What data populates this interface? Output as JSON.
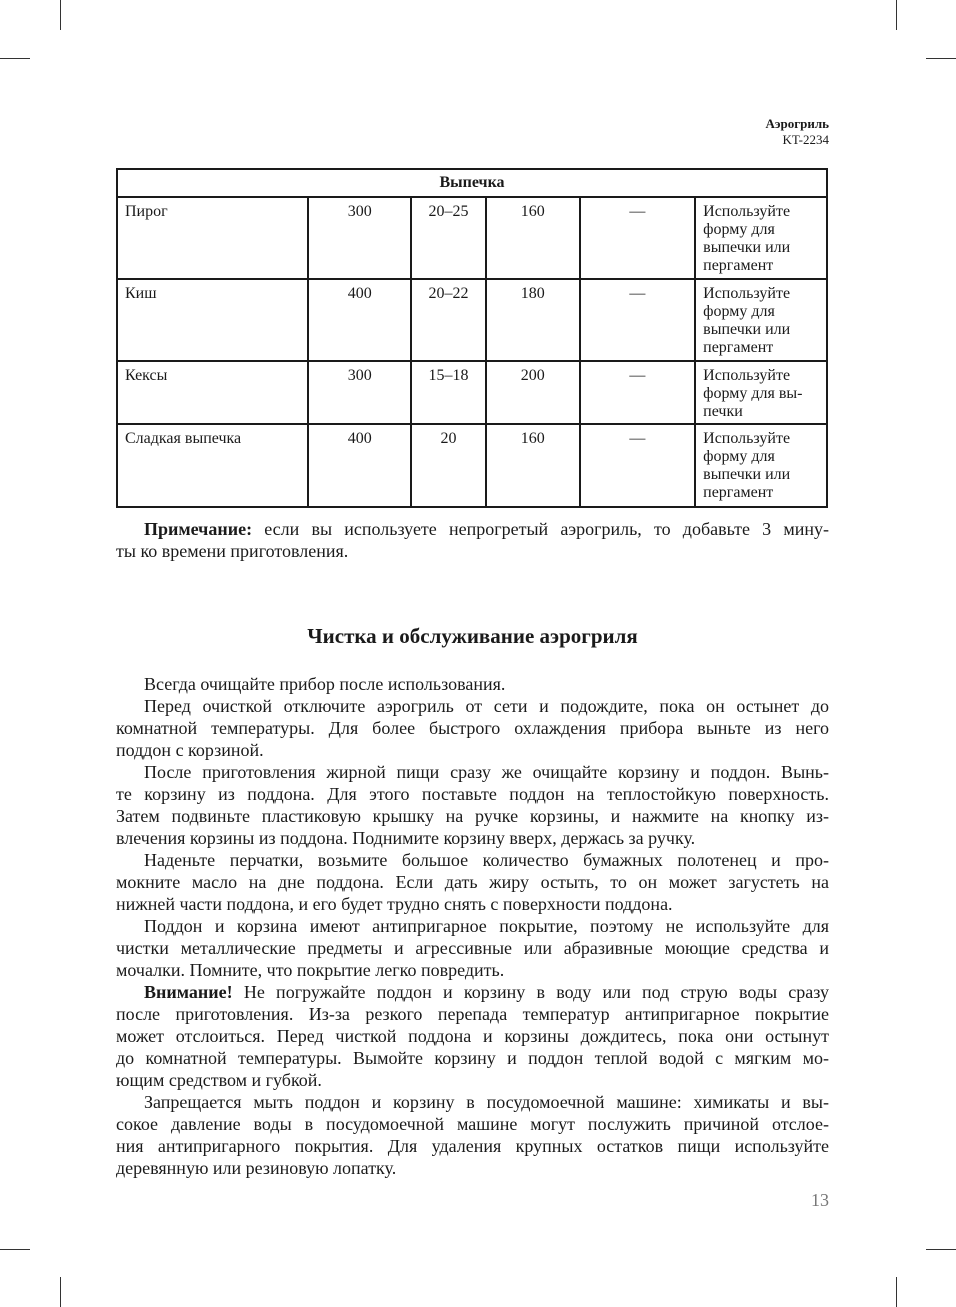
{
  "header": {
    "product": "Аэрогриль",
    "model": "KT-2234"
  },
  "table": {
    "section": "Выпечка",
    "rows": [
      [
        "Пирог",
        "300",
        "20–25",
        "160",
        "—",
        "Используйте\nформу для\nвыпечки или\nпергамент"
      ],
      [
        "Киш",
        "400",
        "20–22",
        "180",
        "—",
        "Используйте\nформу для\nвыпечки или\nпергамент"
      ],
      [
        "Кексы",
        "300",
        "15–18",
        "200",
        "—",
        "Используйте\nформу для вы-\nпечки"
      ],
      [
        "Сладкая выпечка",
        "400",
        "20",
        "160",
        "—",
        "Используйте\nформу для\nвыпечки или\nпергамент"
      ]
    ]
  },
  "note": {
    "lead": "Примечание:",
    "lines": [
      " если вы используете непрогретый аэрогриль, то добавьте 3 мину-",
      "ты ко времени приготовления."
    ]
  },
  "heading": "Чистка и обслуживание аэрогриля",
  "paragraphs": [
    {
      "lines": [
        "Всегда очищайте прибор после использования."
      ]
    },
    {
      "lines": [
        "Перед очисткой отключите аэрогриль от сети и подождите, пока он остынет до",
        "комнатной температуры. Для более быстрого охлаждения прибора выньте из него",
        "поддон с корзиной."
      ]
    },
    {
      "lines": [
        "После приготовления жирной пищи сразу же очищайте корзину и поддон. Вынь-",
        "те корзину из поддона. Для этого поставьте поддон на теплостойкую поверхность.",
        "Затем подвиньте пластиковую крышку на ручке корзины, и нажмите на кнопку из-",
        "влечения корзины из поддона. Поднимите корзину вверх, держась за ручку."
      ]
    },
    {
      "lines": [
        "Наденьте перчатки, возьмите большое количество бумажных полотенец и про-",
        "мокните масло на дне поддона. Если дать жиру остыть, то он может загустеть на",
        "нижней части поддона, и его будет трудно снять с поверхности поддона."
      ]
    },
    {
      "lines": [
        "Поддон и корзина имеют антипригарное покрытие, поэтому не используйте для",
        "чистки металлические предметы и агрессивные или абразивные моющие средства и",
        "мочалки. Помните, что покрытие легко повредить."
      ]
    },
    {
      "lead": "Внимание!",
      "lines": [
        " Не погружайте поддон и корзину в воду или под струю воды сразу",
        "после приготовления. Из-за резкого перепада температур антипригарное покрытие",
        "может отслоиться. Перед чисткой поддона и корзины дождитесь, пока они остынут",
        "до комнатной температуры. Вымойте корзину и поддон теплой водой с мягким мо-",
        "ющим средством и губкой."
      ]
    },
    {
      "lines": [
        "Запрещается мыть поддон и корзину в посудомоечной машине: химикаты и вы-",
        "сокое давление воды в посудомоечной машине могут послужить причиной отслое-",
        "ния антипригарного покрытия. Для удаления крупных остатков пищи используйте",
        "деревянную или резиновую лопатку."
      ]
    }
  ],
  "page_number": "13"
}
